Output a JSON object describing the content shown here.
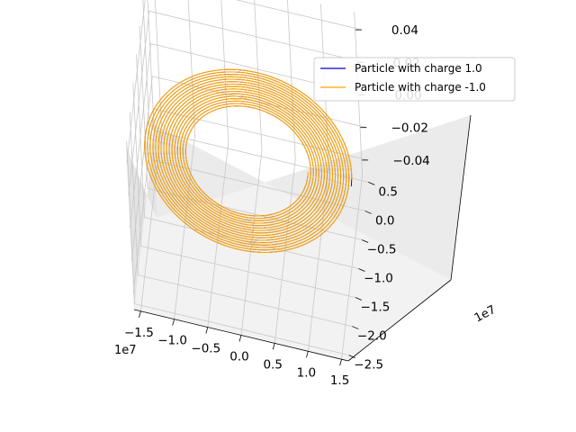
{
  "chart_data": {
    "type": "line",
    "projection": "3d",
    "title": "",
    "xlabel": "",
    "ylabel": "",
    "zlabel": "",
    "x_offset": "1e7",
    "y_offset": "1e7",
    "xlim": [
      -1.6,
      1.6
    ],
    "ylim": [
      -2.6,
      0.6
    ],
    "zlim": [
      -0.05,
      0.05
    ],
    "x_ticks": [
      -1.5,
      -1.0,
      -0.5,
      0.0,
      0.5,
      1.0,
      1.5
    ],
    "x_tick_labels": [
      "−1.5",
      "−1.0",
      "−0.5",
      "0.0",
      "0.5",
      "1.0",
      "1.5"
    ],
    "y_ticks": [
      -2.5,
      -2.0,
      -1.5,
      -1.0,
      -0.5,
      0.0,
      0.5
    ],
    "y_tick_labels": [
      "−2.5",
      "−2.0",
      "−1.5",
      "−1.0",
      "−0.5",
      "0.0",
      "0.5"
    ],
    "z_ticks": [
      -0.04,
      -0.02,
      0.0,
      0.02,
      0.04
    ],
    "z_tick_labels": [
      "−0.04",
      "−0.02",
      "0.00",
      "0.02",
      "0.04"
    ],
    "grid": true,
    "legend_position": "top-right",
    "series": [
      {
        "name": "Particle with charge 1.0",
        "color": "#0000cc",
        "orbit_center_x": 0.0,
        "orbit_center_y": -1.0,
        "radius_min": 0.9,
        "radius_max": 1.55,
        "turns": 16,
        "z": 0.0
      },
      {
        "name": "Particle with charge -1.0",
        "color": "#ffa500",
        "orbit_center_x": 0.0,
        "orbit_center_y": -1.0,
        "radius_min": 0.9,
        "radius_max": 1.55,
        "turns": 16,
        "z": 0.0
      }
    ]
  }
}
